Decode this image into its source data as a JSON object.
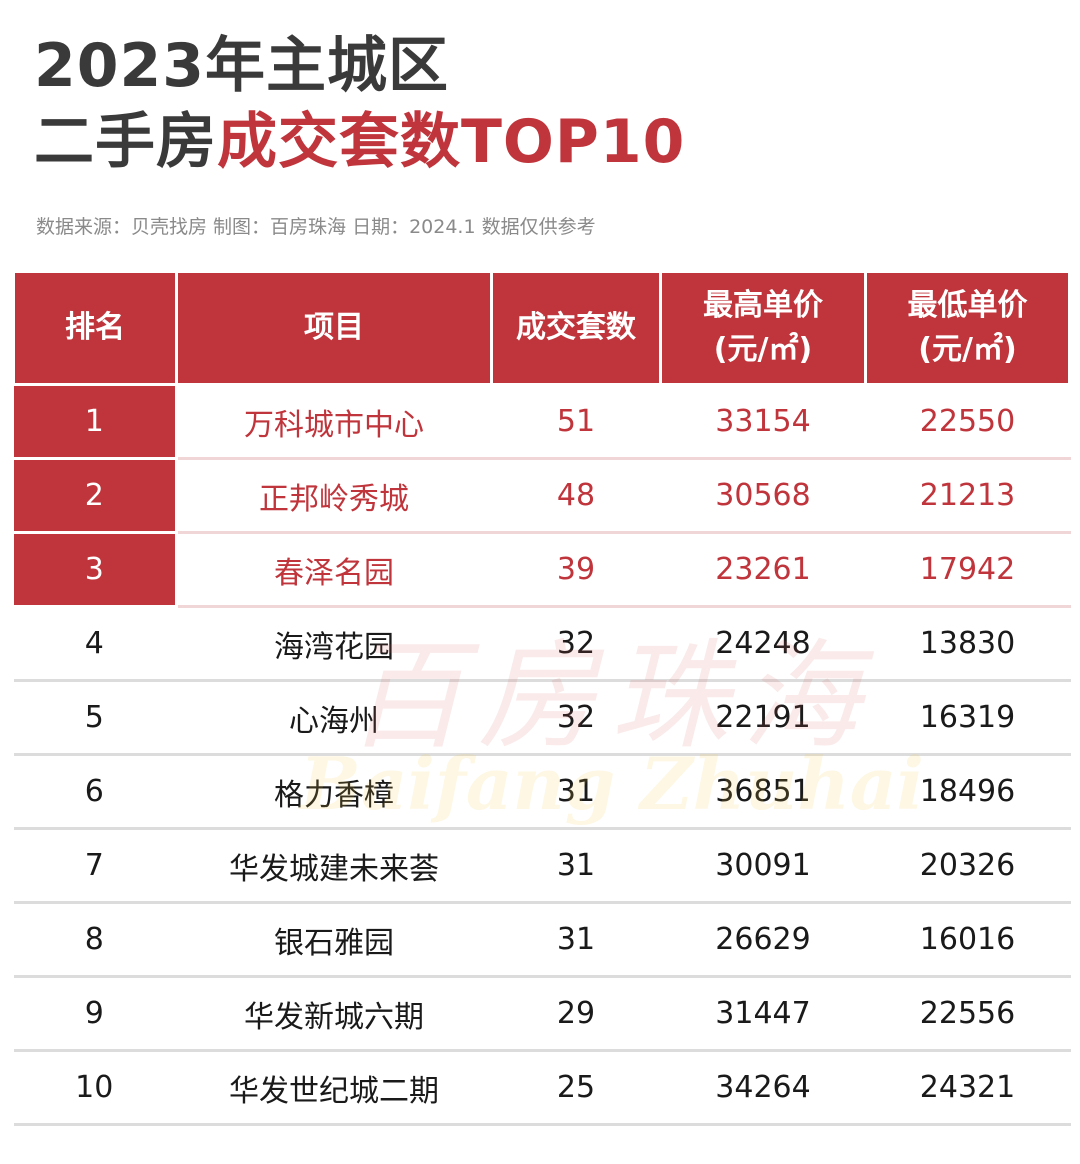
{
  "title": {
    "line1": "2023年主城区",
    "line2_plain": "二手房",
    "line2_accent": "成交套数TOP10"
  },
  "source_note": "数据来源：贝壳找房  制图：百房珠海  日期：2024.1  数据仅供参考",
  "colors": {
    "accent": "#c0343b",
    "title": "#3a3a3a",
    "note": "#8a8a8a"
  },
  "table": {
    "headers": {
      "rank": "排名",
      "project": "项目",
      "deals": "成交套数",
      "max_price": "最高单价",
      "max_price_unit": "(元/㎡)",
      "min_price": "最低单价",
      "min_price_unit": "(元/㎡)"
    },
    "rows": [
      {
        "rank": "1",
        "project": "万科城市中心",
        "deals": "51",
        "max_price": "33154",
        "min_price": "22550"
      },
      {
        "rank": "2",
        "project": "正邦岭秀城",
        "deals": "48",
        "max_price": "30568",
        "min_price": "21213"
      },
      {
        "rank": "3",
        "project": "春泽名园",
        "deals": "39",
        "max_price": "23261",
        "min_price": "17942"
      },
      {
        "rank": "4",
        "project": "海湾花园",
        "deals": "32",
        "max_price": "24248",
        "min_price": "13830"
      },
      {
        "rank": "5",
        "project": "心海州",
        "deals": "32",
        "max_price": "22191",
        "min_price": "16319"
      },
      {
        "rank": "6",
        "project": "格力香樟",
        "deals": "31",
        "max_price": "36851",
        "min_price": "18496"
      },
      {
        "rank": "7",
        "project": "华发城建未来荟",
        "deals": "31",
        "max_price": "30091",
        "min_price": "20326"
      },
      {
        "rank": "8",
        "project": "银石雅园",
        "deals": "31",
        "max_price": "26629",
        "min_price": "16016"
      },
      {
        "rank": "9",
        "project": "华发新城六期",
        "deals": "29",
        "max_price": "31447",
        "min_price": "22556"
      },
      {
        "rank": "10",
        "project": "华发世纪城二期",
        "deals": "25",
        "max_price": "34264",
        "min_price": "24321"
      }
    ]
  },
  "watermark": {
    "cn": "百房珠海",
    "en": "Baifang Zhuhai"
  }
}
